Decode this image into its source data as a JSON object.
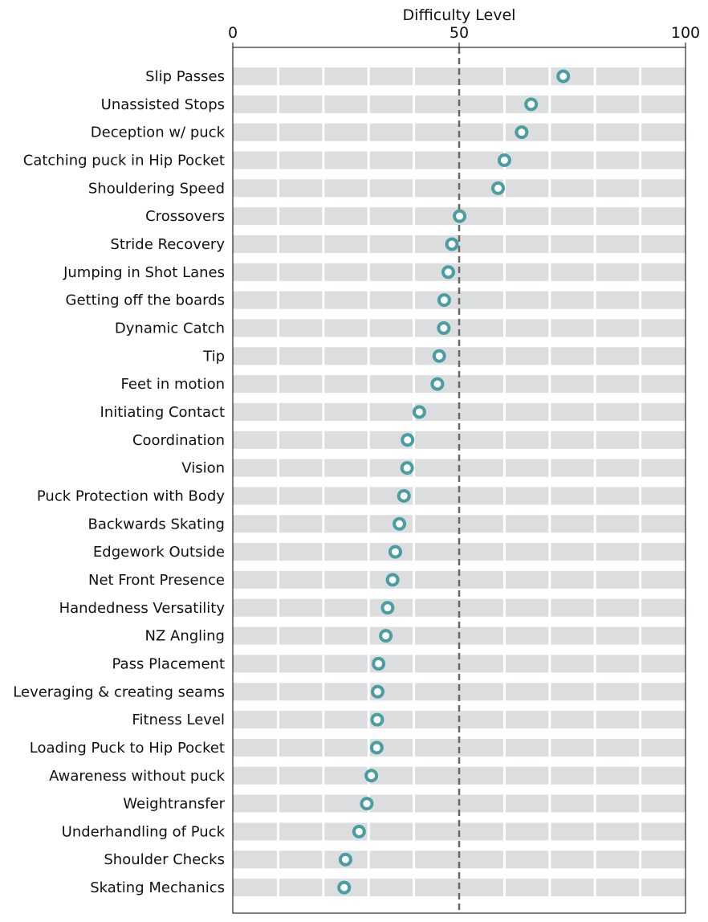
{
  "chart_data": {
    "type": "scatter",
    "title": "",
    "xlabel": "Difficulty Level",
    "ylabel": "",
    "xlim": [
      0,
      100
    ],
    "xticks": [
      0,
      50,
      100
    ],
    "xtick_labels": [
      "0",
      "50",
      "100"
    ],
    "reference_line": 50,
    "axis_position": "top",
    "grid": false,
    "categories": [
      "Slip Passes",
      "Unassisted Stops",
      "Deception w/ puck",
      "Catching puck in Hip Pocket",
      "Shouldering Speed",
      "Crossovers",
      "Stride Recovery",
      "Jumping in Shot Lanes",
      "Getting off the boards",
      "Dynamic Catch",
      "Tip",
      "Feet in motion",
      "Initiating Contact",
      "Coordination",
      "Vision",
      "Puck Protection with Body",
      "Backwards Skating",
      "Edgework Outside",
      "Net Front Presence",
      "Handedness Versatility",
      "NZ Angling",
      "Pass Placement",
      "Leveraging & creating seams",
      "Fitness Level",
      "Loading Puck to Hip Pocket",
      "Awareness without puck",
      "Weightransfer",
      "Underhandling of Puck",
      "Shoulder Checks",
      "Skating Mechanics"
    ],
    "values": [
      73.0,
      65.9,
      63.8,
      60.0,
      58.6,
      50.1,
      48.4,
      47.6,
      46.7,
      46.6,
      45.6,
      45.2,
      41.2,
      38.6,
      38.5,
      37.8,
      36.8,
      35.9,
      35.3,
      34.2,
      33.8,
      32.2,
      32.0,
      31.9,
      31.8,
      30.6,
      29.6,
      27.9,
      24.9,
      24.6
    ],
    "colors": {
      "marker": "#4a9da0",
      "bar": "#dcdddf",
      "reference_line": "#666666",
      "axis": "#000000"
    }
  }
}
